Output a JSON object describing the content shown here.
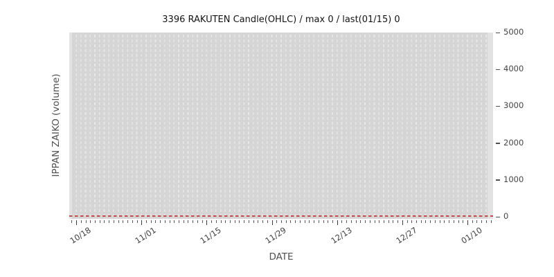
{
  "chart_data": {
    "type": "candlestick",
    "title": "3396 RAKUTEN Candle(OHLC) / max 0 / last(01/15) 0",
    "xlabel": "DATE",
    "ylabel": "IPPAN ZAIKO (volume)",
    "ylim": [
      0,
      5000
    ],
    "y_ticks": [
      0,
      1000,
      2000,
      3000,
      4000,
      5000
    ],
    "x_tick_labels": [
      "10/18",
      "11/01",
      "11/15",
      "11/29",
      "12/13",
      "12/27",
      "01/10"
    ],
    "num_periods": 91,
    "major_tick_indices": [
      1,
      15,
      29,
      43,
      57,
      71,
      85
    ],
    "y_axis_side": "right",
    "grid": "one light vertical dashed gridline per day, no horizontal gridlines",
    "legend": "none",
    "series": [
      {
        "name": "3396 RAKUTEN OHLC/volume",
        "description": "flat dashed line at 0 - every value from 10/18 through 01/15 is 0",
        "constant_value": 0,
        "max": 0,
        "last_date": "01/15",
        "last_value": 0,
        "color": "#c64a45",
        "line_style": "dashed"
      }
    ],
    "colors": {
      "figure_background": "#ffffff",
      "plot_background": "#d5d5d5",
      "grid_dash": "#e6e6e6",
      "zero_line": "#c64a45",
      "tick_text": "#454545",
      "axis_label_text": "#4f4f4f",
      "title_text": "#141414"
    }
  }
}
